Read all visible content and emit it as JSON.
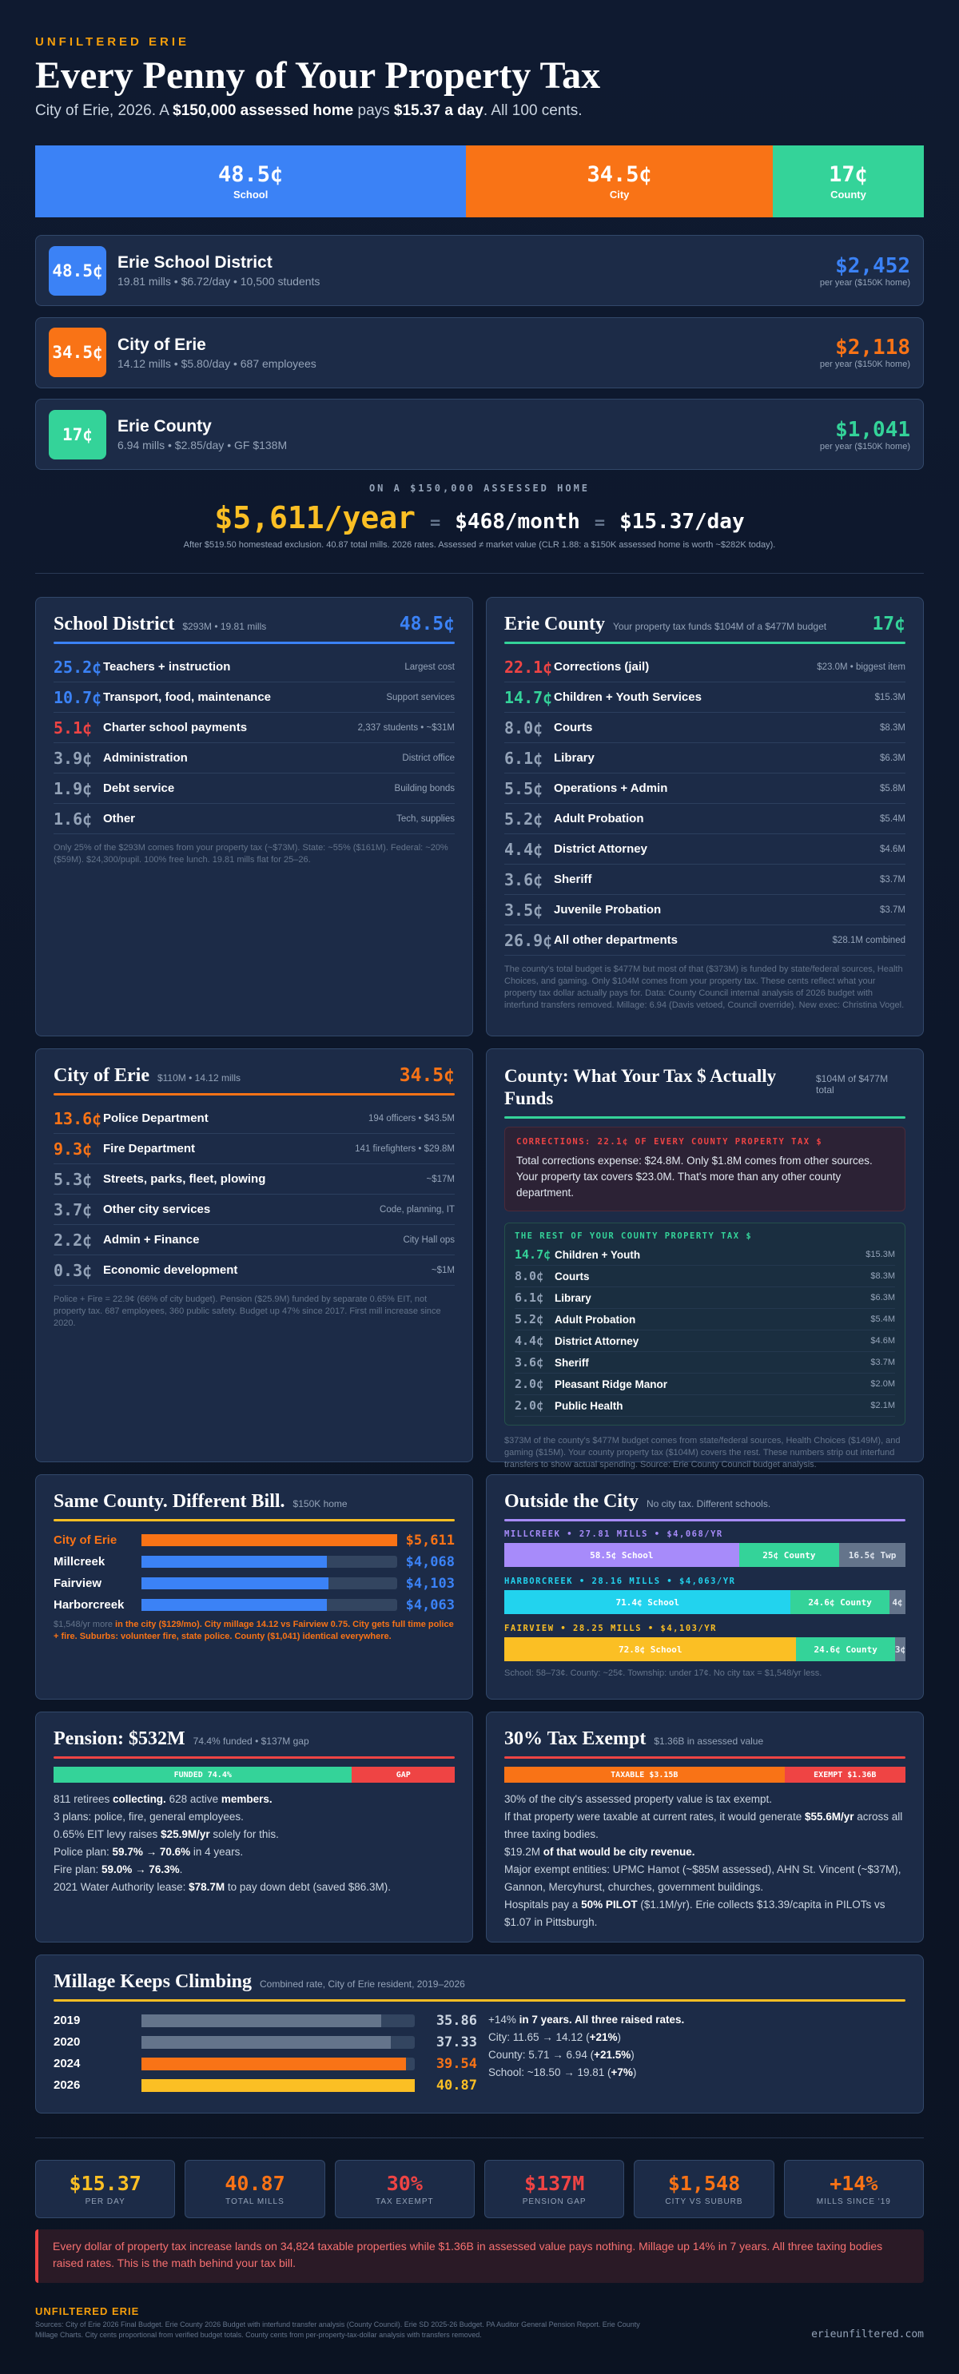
{
  "header": {
    "kicker": "UNFILTERED ERIE",
    "title": "Every Penny of Your Property Tax",
    "subtitle": [
      "City of Erie, 2026. A ",
      "$150,000 assessed home",
      " pays ",
      "$15.37 a day",
      ". All 100 cents."
    ]
  },
  "split": [
    {
      "value": 48.5,
      "label": "48.5¢",
      "name": "School",
      "color": "#3b82f6"
    },
    {
      "value": 34.5,
      "label": "34.5¢",
      "name": "City",
      "color": "#f97316"
    },
    {
      "value": 17,
      "label": "17¢",
      "name": "County",
      "color": "#34d399"
    }
  ],
  "districts": [
    {
      "badge": "48.5¢",
      "name": "Erie School District",
      "detail": "19.81 mills • $6.72/day • 10,500 students",
      "amount": "$2,452",
      "note": "per year ($150K home)",
      "color": "#3b82f6"
    },
    {
      "badge": "34.5¢",
      "name": "City of Erie",
      "detail": "14.12 mills • $5.80/day • 687 employees",
      "amount": "$2,118",
      "note": "per year ($150K home)",
      "color": "#f97316"
    },
    {
      "badge": "17¢",
      "name": "Erie County",
      "detail": "6.94 mills • $2.85/day • GF $138M",
      "amount": "$1,041",
      "note": "per year ($150K home)",
      "color": "#34d399"
    }
  ],
  "annual": {
    "kicker": "ON A $150,000 ASSESSED HOME",
    "year": "$5,611/year",
    "eq1": "=",
    "month": "$468/month",
    "eq2": "=",
    "day": "$15.37/day",
    "note": "After $519.50 homestead exclusion. 40.87 total mills. 2026 rates. Assessed ≠ market value (CLR 1.88: a $150K assessed home is worth ~$282K today)."
  },
  "panels": [
    {
      "title": "School District",
      "sub": "$293M • 19.81 mills",
      "badge": "48.5¢",
      "color": "#3b82f6",
      "rows": [
        {
          "cents": "25.2¢",
          "name": "Teachers + instruction",
          "note": "Largest cost",
          "color": "#3b82f6"
        },
        {
          "cents": "10.7¢",
          "name": "Transport, food, maintenance",
          "note": "Support services",
          "color": "#3b82f6"
        },
        {
          "cents": "5.1¢",
          "name": "Charter school payments",
          "note": "2,337 students • ~$31M",
          "color": "#ef4444"
        },
        {
          "cents": "3.9¢",
          "name": "Administration",
          "note": "District office",
          "color": "#94a3b8"
        },
        {
          "cents": "1.9¢",
          "name": "Debt service",
          "note": "Building bonds",
          "color": "#94a3b8"
        },
        {
          "cents": "1.6¢",
          "name": "Other",
          "note": "Tech, supplies",
          "color": "#94a3b8"
        }
      ],
      "footnote": "Only 25% of the $293M comes from your property tax (~$73M). State: ~55% ($161M). Federal: ~20% ($59M). $24,300/pupil. 100% free lunch. 19.81 mills flat for 25–26."
    },
    {
      "title": "Erie County",
      "sub": "Your property tax funds $104M of a $477M budget",
      "badge": "17¢",
      "color": "#34d399",
      "rows": [
        {
          "cents": "22.1¢",
          "name": "Corrections (jail)",
          "note": "$23.0M • biggest item",
          "color": "#ef4444"
        },
        {
          "cents": "14.7¢",
          "name": "Children + Youth Services",
          "note": "$15.3M",
          "color": "#34d399"
        },
        {
          "cents": "8.0¢",
          "name": "Courts",
          "note": "$8.3M",
          "color": "#94a3b8"
        },
        {
          "cents": "6.1¢",
          "name": "Library",
          "note": "$6.3M",
          "color": "#94a3b8"
        },
        {
          "cents": "5.5¢",
          "name": "Operations + Admin",
          "note": "$5.8M",
          "color": "#94a3b8"
        },
        {
          "cents": "5.2¢",
          "name": "Adult Probation",
          "note": "$5.4M",
          "color": "#94a3b8"
        },
        {
          "cents": "4.4¢",
          "name": "District Attorney",
          "note": "$4.6M",
          "color": "#94a3b8"
        },
        {
          "cents": "3.6¢",
          "name": "Sheriff",
          "note": "$3.7M",
          "color": "#94a3b8"
        },
        {
          "cents": "3.5¢",
          "name": "Juvenile Probation",
          "note": "$3.7M",
          "color": "#94a3b8"
        },
        {
          "cents": "26.9¢",
          "name": "All other departments",
          "note": "$28.1M combined",
          "color": "#94a3b8"
        }
      ],
      "footnote": "The county's total budget is $477M but most of that ($373M) is funded by state/federal sources, Health Choices, and gaming. Only $104M comes from your property tax. These cents reflect what your property tax dollar actually pays for. Data: County Council internal analysis of 2026 budget with interfund transfers removed. Millage: 6.94 (Davis vetoed, Council override). New exec: Christina Vogel."
    },
    {
      "title": "City of Erie",
      "sub": "$110M • 14.12 mills",
      "badge": "34.5¢",
      "color": "#f97316",
      "rows": [
        {
          "cents": "13.6¢",
          "name": "Police Department",
          "note": "194 officers • $43.5M",
          "color": "#f97316"
        },
        {
          "cents": "9.3¢",
          "name": "Fire Department",
          "note": "141 firefighters • $29.8M",
          "color": "#f97316"
        },
        {
          "cents": "5.3¢",
          "name": "Streets, parks, fleet, plowing",
          "note": "~$17M",
          "color": "#94a3b8"
        },
        {
          "cents": "3.7¢",
          "name": "Other city services",
          "note": "Code, planning, IT",
          "color": "#94a3b8"
        },
        {
          "cents": "2.2¢",
          "name": "Admin + Finance",
          "note": "City Hall ops",
          "color": "#94a3b8"
        },
        {
          "cents": "0.3¢",
          "name": "Economic development",
          "note": "~$1M",
          "color": "#94a3b8"
        }
      ],
      "footnote": "Police + Fire = 22.9¢ (66% of city budget). Pension ($25.9M) funded by separate 0.65% EIT, not property tax. 687 employees, 360 public safety. Budget up 47% since 2017. First mill increase since 2020."
    }
  ],
  "county_funds": {
    "title": "County: What Your Tax $ Actually Funds",
    "sub": "$104M of $477M total",
    "corrections": {
      "kicker": "CORRECTIONS: 22.1¢ OF EVERY COUNTY PROPERTY TAX $",
      "text": "Total corrections expense: $24.8M. Only $1.8M comes from other sources. Your property tax covers $23.0M. That's more than any other county department."
    },
    "rest": {
      "kicker": "THE REST OF YOUR COUNTY PROPERTY TAX $",
      "rows": [
        {
          "cents": "14.7¢",
          "name": "Children + Youth",
          "amount": "$15.3M"
        },
        {
          "cents": "8.0¢",
          "name": "Courts",
          "amount": "$8.3M"
        },
        {
          "cents": "6.1¢",
          "name": "Library",
          "amount": "$6.3M"
        },
        {
          "cents": "5.2¢",
          "name": "Adult Probation",
          "amount": "$5.4M"
        },
        {
          "cents": "4.4¢",
          "name": "District Attorney",
          "amount": "$4.6M"
        },
        {
          "cents": "3.6¢",
          "name": "Sheriff",
          "amount": "$3.7M"
        },
        {
          "cents": "2.0¢",
          "name": "Pleasant Ridge Manor",
          "amount": "$2.0M"
        },
        {
          "cents": "2.0¢",
          "name": "Public Health",
          "amount": "$2.1M"
        }
      ]
    },
    "footnote": "$373M of the county's $477M budget comes from state/federal sources, Health Choices ($149M), and gaming ($15M). Your county property tax ($104M) covers the rest. These numbers strip out interfund transfers to show actual spending. Source: Erie County Council budget analysis."
  },
  "same_county": {
    "title": "Same County. Different Bill.",
    "sub": "$150K home",
    "rows": [
      {
        "name": "City of Erie",
        "value": 5611,
        "label": "$5,611",
        "color": "#f97316"
      },
      {
        "name": "Millcreek",
        "value": 4068,
        "label": "$4,068",
        "color": "#3b82f6"
      },
      {
        "name": "Fairview",
        "value": 4103,
        "label": "$4,103",
        "color": "#3b82f6"
      },
      {
        "name": "Harborcreek",
        "value": 4063,
        "label": "$4,063",
        "color": "#3b82f6"
      }
    ],
    "footnote": [
      "$1,548/yr more",
      " in the city ($129/mo). City millage 14.12 vs Fairview 0.75. City gets full time police + fire. Suburbs: volunteer fire, state police. County ($1,041) identical everywhere."
    ]
  },
  "outside": {
    "title": "Outside the City",
    "sub": "No city tax. Different schools.",
    "groups": [
      {
        "kicker": "MILLCREEK • 27.81 MILLS • $4,068/YR",
        "color": "#a78bfa",
        "segments": [
          {
            "value": 58.5,
            "label": "58.5¢ School",
            "color": "#a78bfa"
          },
          {
            "value": 25,
            "label": "25¢ County",
            "color": "#34d399"
          },
          {
            "value": 16.5,
            "label": "16.5¢ Twp",
            "color": "#64748b"
          }
        ]
      },
      {
        "kicker": "HARBORCREEK • 28.16 MILLS • $4,063/YR",
        "color": "#22d3ee",
        "segments": [
          {
            "value": 71.4,
            "label": "71.4¢ School",
            "color": "#22d3ee"
          },
          {
            "value": 24.6,
            "label": "24.6¢ County",
            "color": "#34d399"
          },
          {
            "value": 4,
            "label": "4¢",
            "color": "#64748b"
          }
        ]
      },
      {
        "kicker": "FAIRVIEW • 28.25 MILLS • $4,103/YR",
        "color": "#fbbf24",
        "segments": [
          {
            "value": 72.8,
            "label": "72.8¢ School",
            "color": "#fbbf24"
          },
          {
            "value": 24.6,
            "label": "24.6¢ County",
            "color": "#34d399"
          },
          {
            "value": 2.6,
            "label": "3¢",
            "color": "#64748b"
          }
        ]
      }
    ],
    "footnote": "School: 58–73¢. County: ~25¢. Township: under 17¢. No city tax = $1,548/yr less."
  },
  "pension": {
    "title": "Pension: $532M",
    "sub": "74.4% funded • $137M gap",
    "bar": [
      {
        "value": 74.4,
        "label": "FUNDED 74.4%",
        "color": "#34d399"
      },
      {
        "value": 25.6,
        "label": "GAP",
        "color": "#ef4444"
      }
    ],
    "lines": [
      [
        "811 retirees",
        " collecting. ",
        "628 active",
        " members."
      ],
      "3 plans: police, fire, general employees.",
      [
        "0.65% EIT levy raises ",
        "$25.9M/yr",
        " solely for this."
      ],
      [
        "Police plan: ",
        "59.7% → 70.6%",
        " in 4 years."
      ],
      [
        "Fire plan: ",
        "59.0% → 76.3%",
        "."
      ],
      [
        "2021 Water Authority lease: ",
        "$78.7M",
        " to pay down debt (saved $86.3M)."
      ]
    ]
  },
  "exempt": {
    "title": "30% Tax Exempt",
    "sub": "$1.36B in assessed value",
    "bar": [
      {
        "value": 3.15,
        "label": "TAXABLE $3.15B",
        "color": "#f97316"
      },
      {
        "value": 1.36,
        "label": "EXEMPT $1.36B",
        "color": "#ef4444"
      }
    ],
    "lines": [
      "30% of the city's assessed property value is tax exempt.",
      [
        "If that property were taxable at current rates, it would generate ",
        "$55.6M/yr",
        " across all three taxing bodies."
      ],
      [
        "$19.2M",
        " of that would be city revenue."
      ],
      "Major exempt entities: UPMC Hamot (~$85M assessed), AHN St. Vincent (~$37M), Gannon, Mercyhurst, churches, government buildings.",
      [
        "Hospitals pay a ",
        "50% PILOT",
        " ($1.1M/yr). Erie collects $13.39/capita in PILOTs vs $1.07 in Pittsburgh."
      ]
    ]
  },
  "millage": {
    "title": "Millage Keeps Climbing",
    "sub": "Combined rate, City of Erie resident, 2019–2026",
    "rows": [
      {
        "year": "2019",
        "value": 35.86,
        "color": "#64748b"
      },
      {
        "year": "2020",
        "value": 37.33,
        "color": "#64748b"
      },
      {
        "year": "2024",
        "value": 39.54,
        "color": "#f97316"
      },
      {
        "year": "2026",
        "value": 40.87,
        "color": "#fbbf24"
      }
    ],
    "notes": [
      [
        "+14%",
        " in 7 years. All three raised rates."
      ],
      [
        "City: 11.65 → 14.12 (",
        "+21%",
        ")"
      ],
      [
        "County: 5.71 → 6.94 (",
        "+21.5%",
        ")"
      ],
      [
        "School: ~18.50 → 19.81 (",
        "+7%",
        ")"
      ]
    ]
  },
  "stats": [
    {
      "value": "$15.37",
      "label": "PER DAY",
      "color": "#fbbf24"
    },
    {
      "value": "40.87",
      "label": "TOTAL MILLS",
      "color": "#f97316"
    },
    {
      "value": "30%",
      "label": "TAX EXEMPT",
      "color": "#ef4444"
    },
    {
      "value": "$137M",
      "label": "PENSION GAP",
      "color": "#ef4444"
    },
    {
      "value": "$1,548",
      "label": "CITY VS SUBURB",
      "color": "#f97316"
    },
    {
      "value": "+14%",
      "label": "MILLS SINCE '19",
      "color": "#f97316"
    }
  ],
  "callout": "Every dollar of property tax increase lands on 34,824 taxable properties while $1.36B in assessed value pays nothing. Millage up 14% in 7 years. All three taxing bodies raised rates. This is the math behind your tax bill.",
  "footer": {
    "brand": "UNFILTERED ERIE",
    "sources": "Sources: City of Erie 2026 Final Budget. Erie County 2026 Budget with interfund transfer analysis (County Council). Erie SD 2025-26 Budget. PA Auditor General Pension Report. Erie County Millage Charts. City cents proportional from verified budget totals. County cents from per-property-tax-dollar analysis with transfers removed.",
    "site": "erieunfiltered.com"
  }
}
